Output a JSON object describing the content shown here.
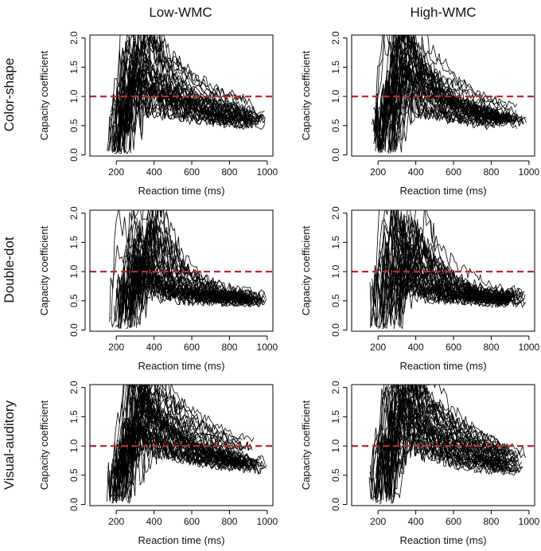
{
  "figure": {
    "column_titles": [
      "Low-WMC",
      "High-WMC"
    ],
    "row_titles": [
      "Color-shape",
      "Double-dot",
      "Visual-auditory"
    ],
    "reference_color": "#c0282d",
    "line_color": "#000000"
  },
  "chart_data": [
    {
      "type": "line",
      "condition": "Color-shape",
      "group": "Low-WMC",
      "xlabel": "Reaction time (ms)",
      "ylabel": "Capacity coefficient",
      "xlim": [
        60,
        1030
      ],
      "ylim": [
        -0.02,
        2.05
      ],
      "xticks": [
        200,
        400,
        600,
        800,
        1000
      ],
      "yticks": [
        "0.0",
        "0.5",
        "1.0",
        "1.5",
        "2.0"
      ],
      "reference_line": {
        "y": 1.0,
        "style": "dashed"
      },
      "n_series": 40,
      "rt_start_range": [
        150,
        270
      ],
      "rt_end_range": [
        840,
        1000
      ],
      "peak_range": [
        0.9,
        2.5
      ],
      "start_low": [
        0.1,
        0.35
      ],
      "end_value": [
        0.45,
        0.6
      ],
      "decay_ms": 260
    },
    {
      "type": "line",
      "condition": "Color-shape",
      "group": "High-WMC",
      "xlabel": "Reaction time (ms)",
      "ylabel": "Capacity coefficient",
      "xlim": [
        60,
        1030
      ],
      "ylim": [
        -0.02,
        2.05
      ],
      "xticks": [
        200,
        400,
        600,
        800,
        1000
      ],
      "yticks": [
        "0.0",
        "0.5",
        "1.0",
        "1.5",
        "2.0"
      ],
      "reference_line": {
        "y": 1.0,
        "style": "dashed"
      },
      "n_series": 40,
      "rt_start_range": [
        160,
        290
      ],
      "rt_end_range": [
        820,
        990
      ],
      "peak_range": [
        0.9,
        2.4
      ],
      "start_low": [
        0.15,
        0.4
      ],
      "end_value": [
        0.45,
        0.6
      ],
      "decay_ms": 260
    },
    {
      "type": "line",
      "condition": "Double-dot",
      "group": "Low-WMC",
      "xlabel": "Reaction time (ms)",
      "ylabel": "Capacity coefficient",
      "xlim": [
        60,
        1030
      ],
      "ylim": [
        -0.02,
        2.05
      ],
      "xticks": [
        200,
        400,
        600,
        800,
        1000
      ],
      "yticks": [
        "0.0",
        "0.5",
        "1.0",
        "1.5",
        "2.0"
      ],
      "reference_line": {
        "y": 1.0,
        "style": "dashed"
      },
      "n_series": 40,
      "rt_start_range": [
        160,
        320
      ],
      "rt_end_range": [
        860,
        1000
      ],
      "peak_range": [
        0.8,
        2.6
      ],
      "start_low": [
        0.1,
        0.5
      ],
      "end_value": [
        0.45,
        0.6
      ],
      "decay_ms": 140
    },
    {
      "type": "line",
      "condition": "Double-dot",
      "group": "High-WMC",
      "xlabel": "Reaction time (ms)",
      "ylabel": "Capacity coefficient",
      "xlim": [
        60,
        1030
      ],
      "ylim": [
        -0.02,
        2.05
      ],
      "xticks": [
        200,
        400,
        600,
        800,
        1000
      ],
      "yticks": [
        "0.0",
        "0.5",
        "1.0",
        "1.5",
        "2.0"
      ],
      "reference_line": {
        "y": 1.0,
        "style": "dashed"
      },
      "n_series": 40,
      "rt_start_range": [
        150,
        320
      ],
      "rt_end_range": [
        860,
        990
      ],
      "peak_range": [
        0.8,
        2.6
      ],
      "start_low": [
        0.1,
        0.5
      ],
      "end_value": [
        0.45,
        0.6
      ],
      "decay_ms": 140
    },
    {
      "type": "line",
      "condition": "Visual-auditory",
      "group": "Low-WMC",
      "xlabel": "Reaction time (ms)",
      "ylabel": "Capacity coefficient",
      "xlim": [
        60,
        1030
      ],
      "ylim": [
        -0.02,
        2.05
      ],
      "xticks": [
        200,
        400,
        600,
        800,
        1000
      ],
      "yticks": [
        "0.0",
        "0.5",
        "1.0",
        "1.5",
        "2.0"
      ],
      "reference_line": {
        "y": 1.0,
        "style": "dashed"
      },
      "n_series": 45,
      "rt_start_range": [
        150,
        260
      ],
      "rt_end_range": [
        840,
        1000
      ],
      "peak_range": [
        1.0,
        2.5
      ],
      "start_low": [
        0.1,
        0.4
      ],
      "end_value": [
        0.5,
        0.62
      ],
      "decay_ms": 320
    },
    {
      "type": "line",
      "condition": "Visual-auditory",
      "group": "High-WMC",
      "xlabel": "Reaction time (ms)",
      "ylabel": "Capacity coefficient",
      "xlim": [
        60,
        1030
      ],
      "ylim": [
        -0.02,
        2.05
      ],
      "xticks": [
        200,
        400,
        600,
        800,
        1000
      ],
      "yticks": [
        "0.0",
        "0.5",
        "1.0",
        "1.5",
        "2.0"
      ],
      "reference_line": {
        "y": 1.0,
        "style": "dashed"
      },
      "n_series": 45,
      "rt_start_range": [
        150,
        280
      ],
      "rt_end_range": [
        840,
        990
      ],
      "peak_range": [
        1.0,
        2.5
      ],
      "start_low": [
        0.1,
        0.4
      ],
      "end_value": [
        0.5,
        0.62
      ],
      "decay_ms": 300
    }
  ]
}
